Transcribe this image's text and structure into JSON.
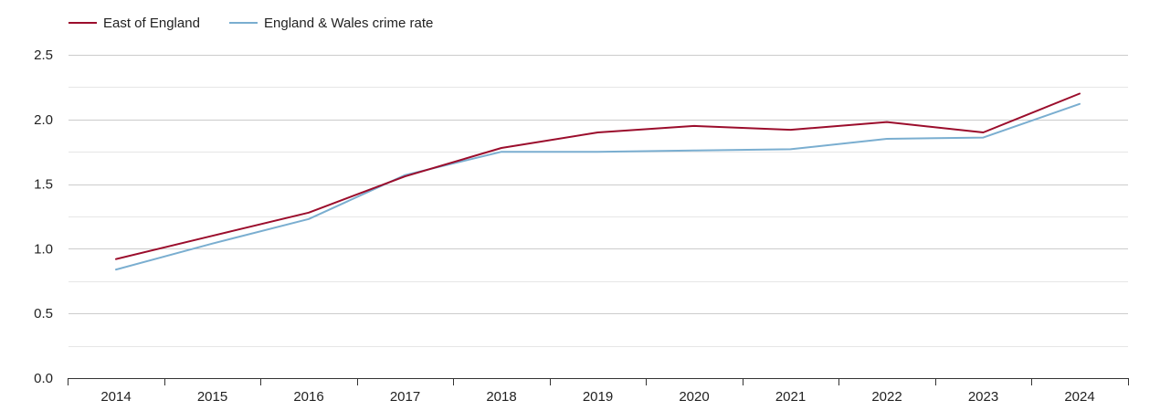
{
  "chart_data": {
    "type": "line",
    "title": "",
    "xlabel": "",
    "ylabel": "",
    "x": [
      2014,
      2015,
      2016,
      2017,
      2018,
      2019,
      2020,
      2021,
      2022,
      2023,
      2024
    ],
    "x_tick_labels": [
      "2014",
      "2015",
      "2016",
      "2017",
      "2018",
      "2019",
      "2020",
      "2021",
      "2022",
      "2023",
      "2024"
    ],
    "ylim": [
      0,
      2.5
    ],
    "y_ticks": [
      0,
      0.5,
      1,
      1.5,
      2,
      2.5
    ],
    "y_tick_labels": [
      "0.0",
      "0.5",
      "1.0",
      "1.5",
      "2.0",
      "2.5"
    ],
    "grid": true,
    "legend_position": "top-left",
    "series": [
      {
        "name": "East of England",
        "color": "#9b0d2c",
        "values": [
          0.92,
          1.1,
          1.28,
          1.56,
          1.78,
          1.9,
          1.95,
          1.92,
          1.98,
          1.9,
          2.2
        ]
      },
      {
        "name": "England & Wales crime rate",
        "color": "#7aaed0",
        "values": [
          0.84,
          1.04,
          1.23,
          1.57,
          1.75,
          1.75,
          1.76,
          1.77,
          1.85,
          1.86,
          2.12
        ]
      }
    ]
  }
}
